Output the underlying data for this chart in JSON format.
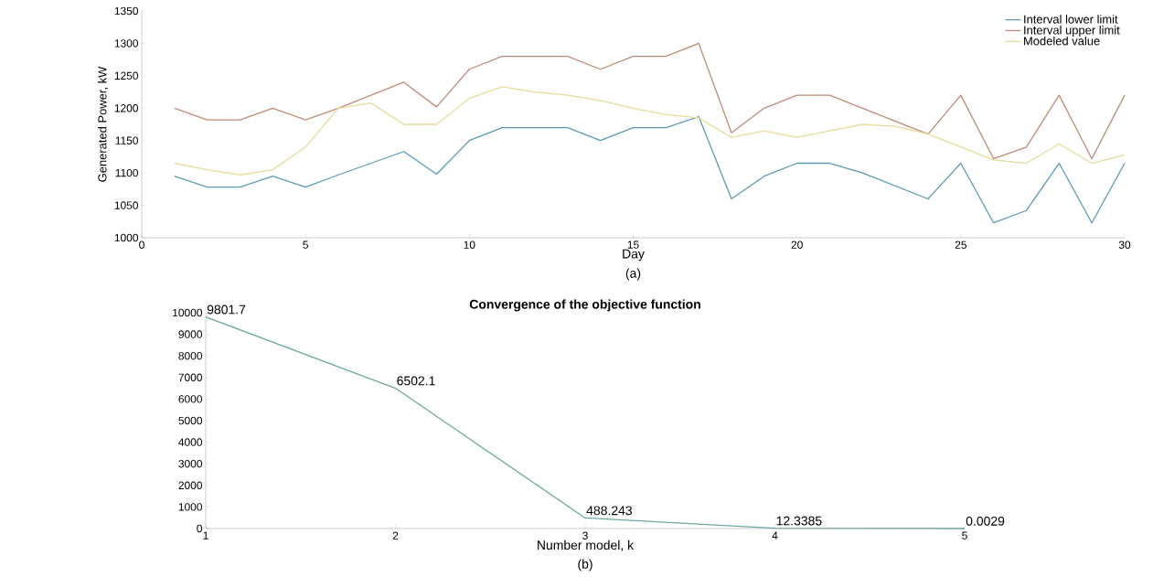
{
  "chart_data": [
    {
      "type": "line",
      "xlabel": "Day",
      "ylabel": "Generated Power, kW",
      "annotations": [
        "(a)"
      ],
      "x": [
        1,
        2,
        3,
        4,
        5,
        6,
        7,
        8,
        9,
        10,
        11,
        12,
        13,
        14,
        15,
        16,
        17,
        18,
        19,
        20,
        21,
        22,
        23,
        24,
        25,
        26,
        27,
        28,
        29,
        30
      ],
      "series": [
        {
          "name": "Interval lower limit",
          "color": "#5b9bb5",
          "values": [
            1095,
            1078,
            1078,
            1095,
            1078,
            1097,
            1115,
            1133,
            1098,
            1150,
            1170,
            1170,
            1170,
            1150,
            1170,
            1170,
            1187,
            1060,
            1095,
            1115,
            1115,
            1100,
            1080,
            1060,
            1115,
            1023,
            1042,
            1115,
            1023,
            1115
          ]
        },
        {
          "name": "Interval upper limit",
          "color": "#c08a78",
          "values": [
            1200,
            1182,
            1182,
            1200,
            1182,
            1200,
            1220,
            1240,
            1202,
            1260,
            1280,
            1280,
            1280,
            1260,
            1280,
            1280,
            1300,
            1162,
            1200,
            1220,
            1220,
            1200,
            1180,
            1160,
            1220,
            1122,
            1140,
            1220,
            1122,
            1220
          ]
        },
        {
          "name": "Modeled value",
          "color": "#e8dc9a",
          "values": [
            1115,
            1105,
            1097,
            1105,
            1140,
            1200,
            1208,
            1175,
            1175,
            1215,
            1233,
            1225,
            1220,
            1212,
            1200,
            1190,
            1185,
            1155,
            1165,
            1155,
            1165,
            1175,
            1172,
            1160,
            1140,
            1120,
            1115,
            1145,
            1115,
            1128
          ]
        }
      ],
      "xlim": [
        0,
        30
      ],
      "xticks": [
        0,
        5,
        10,
        15,
        20,
        25,
        30
      ],
      "ylim": [
        1000,
        1350
      ],
      "yticks": [
        1000,
        1050,
        1100,
        1150,
        1200,
        1250,
        1300,
        1350
      ],
      "grid": false,
      "legend": "top right"
    },
    {
      "type": "line",
      "title": "Convergence of the objective function",
      "xlabel": "Number model, k",
      "annotations": [
        "(b)"
      ],
      "x": [
        1,
        2,
        3,
        4,
        5
      ],
      "series": [
        {
          "color": "#6aa8a0",
          "values": [
            9801.7,
            6502.1,
            488.243,
            12.3385,
            0.0029
          ]
        }
      ],
      "data_labels": true,
      "xlim": [
        1,
        5
      ],
      "xticks": [
        1,
        2,
        3,
        4,
        5
      ],
      "ylim": [
        0,
        10000
      ],
      "yticks": [
        0,
        1000,
        2000,
        3000,
        4000,
        5000,
        6000,
        7000,
        8000,
        9000,
        10000
      ],
      "grid": false
    }
  ]
}
